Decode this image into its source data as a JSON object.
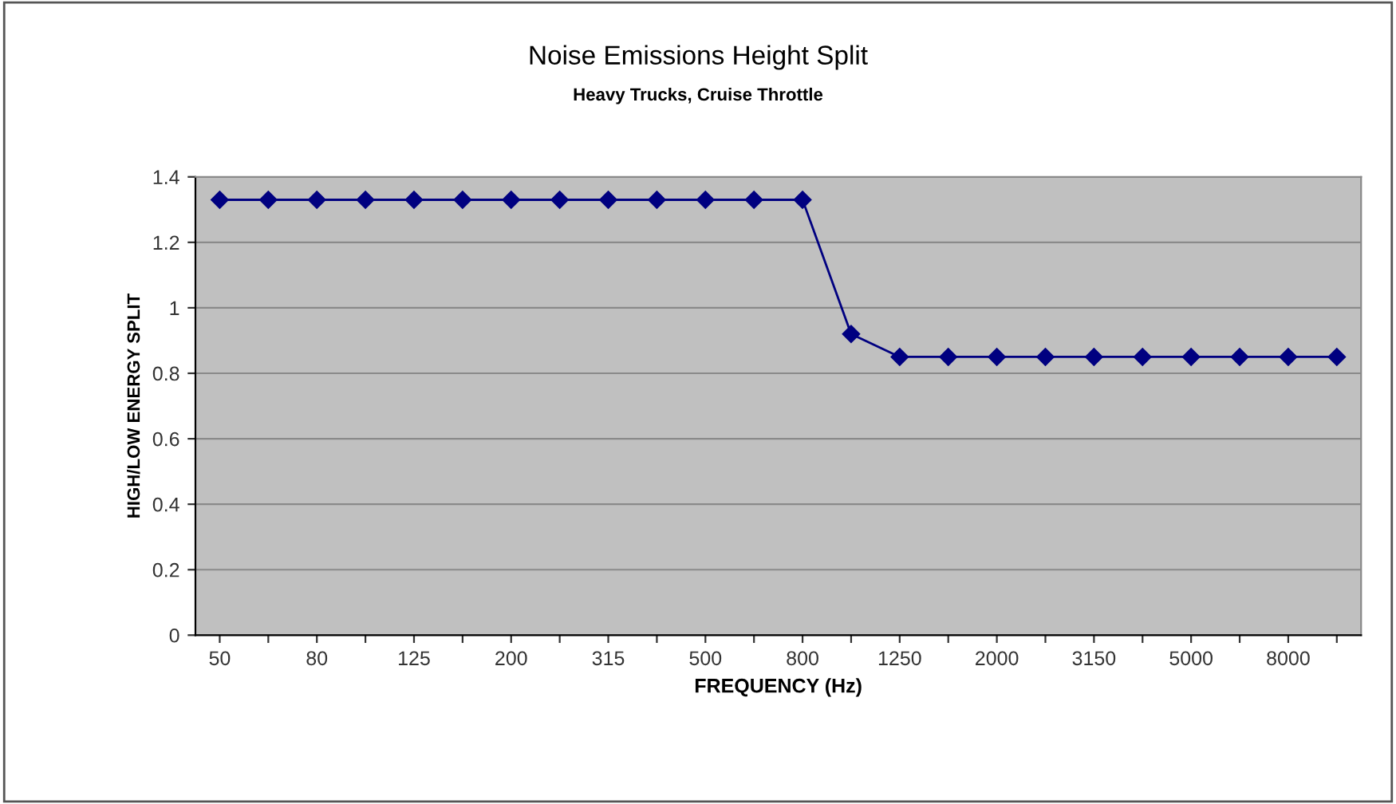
{
  "chart_data": {
    "type": "line",
    "title": "Noise Emissions Height Split",
    "subtitle": "Heavy Trucks, Cruise Throttle",
    "xlabel": "FREQUENCY (Hz)",
    "ylabel": "HIGH/LOW ENERGY SPLIT",
    "categories": [
      "50",
      null,
      "80",
      null,
      "125",
      null,
      "200",
      null,
      "315",
      null,
      "500",
      null,
      "800",
      null,
      "1250",
      null,
      "2000",
      null,
      "3150",
      null,
      "5000",
      null,
      "8000",
      null
    ],
    "series": [
      {
        "color": "#000080",
        "values": [
          1.33,
          1.33,
          1.33,
          1.33,
          1.33,
          1.33,
          1.33,
          1.33,
          1.33,
          1.33,
          1.33,
          1.33,
          1.33,
          0.92,
          0.85,
          0.85,
          0.85,
          0.85,
          0.85,
          0.85,
          0.85,
          0.85,
          0.85,
          0.85
        ]
      }
    ],
    "ylim": [
      0,
      1.4
    ],
    "yticks": [
      0,
      0.2,
      0.4,
      0.6,
      0.8,
      1,
      1.2,
      1.4
    ],
    "grid": "y",
    "marker": "diamond",
    "line_style": "solid",
    "legend": false
  }
}
